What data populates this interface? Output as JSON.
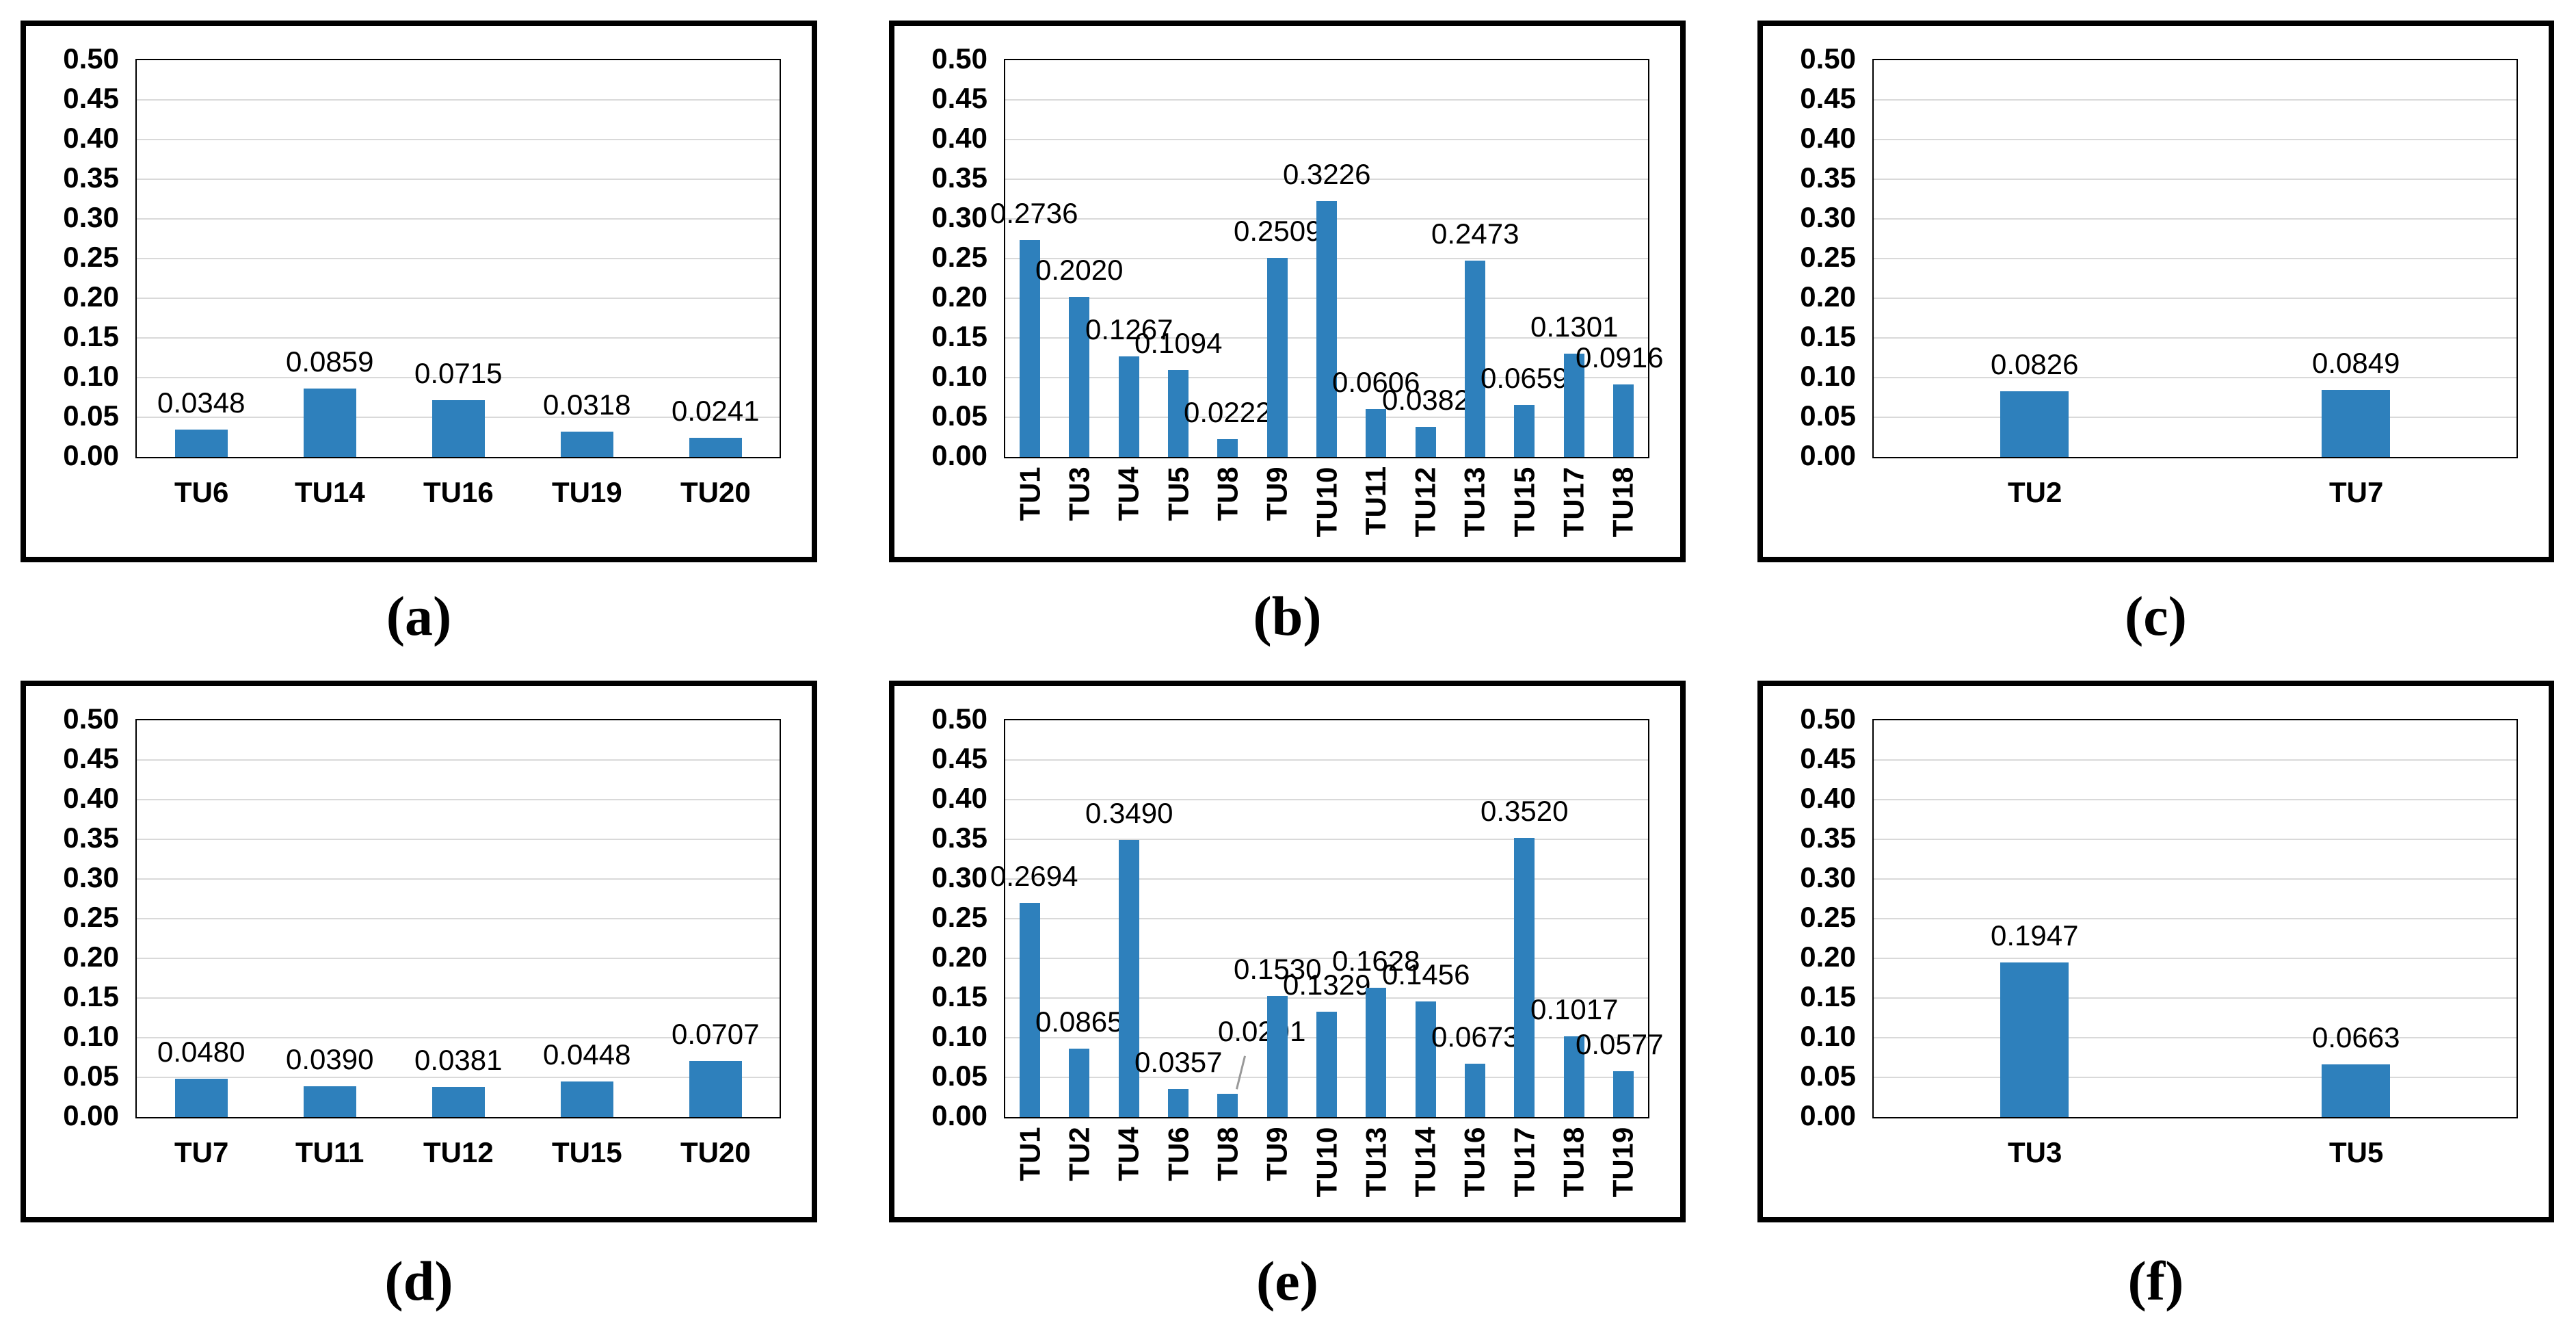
{
  "figure": {
    "description": "Six bar chart panels arranged in a 2x3 grid, labeled (a) to (f)",
    "bar_color": "#2E80BC",
    "gridline_color": "#D9D9D9",
    "plot_border_color": "#000000",
    "panel_border_color": "#000000",
    "leader_line_color": "#999999",
    "y_axis": {
      "min": 0.0,
      "max": 0.5,
      "step": 0.05,
      "tick_labels": [
        "0.50",
        "0.45",
        "0.40",
        "0.35",
        "0.30",
        "0.25",
        "0.20",
        "0.15",
        "0.10",
        "0.05",
        "0.00"
      ]
    }
  },
  "chart_data": [
    {
      "id": "a",
      "caption": "(a)",
      "type": "bar",
      "categories": [
        "TU6",
        "TU14",
        "TU16",
        "TU19",
        "TU20"
      ],
      "values": [
        0.0348,
        0.0859,
        0.0715,
        0.0318,
        0.0241
      ],
      "value_labels": [
        "0.0348",
        "0.0859",
        "0.0715",
        "0.0318",
        "0.0241"
      ],
      "x_labels_rotated": false,
      "ylim": [
        0,
        0.5
      ],
      "grid": "horizontal",
      "legend": "none"
    },
    {
      "id": "b",
      "caption": "(b)",
      "type": "bar",
      "categories": [
        "TU1",
        "TU3",
        "TU4",
        "TU5",
        "TU8",
        "TU9",
        "TU10",
        "TU11",
        "TU12",
        "TU13",
        "TU15",
        "TU17",
        "TU18"
      ],
      "values": [
        0.2736,
        0.202,
        0.1267,
        0.1094,
        0.0222,
        0.2509,
        0.3226,
        0.0606,
        0.0382,
        0.2473,
        0.0659,
        0.1301,
        0.0916
      ],
      "value_labels": [
        "0.2736",
        "0.2020",
        "0.1267",
        "0.1094",
        "0.0222",
        "0.2509",
        "0.3226",
        "0.0606",
        "0.0382",
        "0.2473",
        "0.0659",
        "0.1301",
        "0.0916"
      ],
      "x_labels_rotated": true,
      "ylim": [
        0,
        0.5
      ],
      "grid": "horizontal",
      "legend": "none"
    },
    {
      "id": "c",
      "caption": "(c)",
      "type": "bar",
      "categories": [
        "TU2",
        "TU7"
      ],
      "values": [
        0.0826,
        0.0849
      ],
      "value_labels": [
        "0.0826",
        "0.0849"
      ],
      "x_labels_rotated": false,
      "ylim": [
        0,
        0.5
      ],
      "grid": "horizontal",
      "legend": "none"
    },
    {
      "id": "d",
      "caption": "(d)",
      "type": "bar",
      "categories": [
        "TU7",
        "TU11",
        "TU12",
        "TU15",
        "TU20"
      ],
      "values": [
        0.048,
        0.039,
        0.0381,
        0.0448,
        0.0707
      ],
      "value_labels": [
        "0.0480",
        "0.0390",
        "0.0381",
        "0.0448",
        "0.0707"
      ],
      "x_labels_rotated": false,
      "ylim": [
        0,
        0.5
      ],
      "grid": "horizontal",
      "legend": "none"
    },
    {
      "id": "e",
      "caption": "(e)",
      "type": "bar",
      "categories": [
        "TU1",
        "TU2",
        "TU4",
        "TU6",
        "TU8",
        "TU9",
        "TU10",
        "TU13",
        "TU14",
        "TU16",
        "TU17",
        "TU18",
        "TU19"
      ],
      "values": [
        0.2694,
        0.0865,
        0.349,
        0.0357,
        0.0291,
        0.153,
        0.1329,
        0.1628,
        0.1456,
        0.0673,
        0.352,
        0.1017,
        0.0577
      ],
      "value_labels": [
        "0.2694",
        "0.0865",
        "0.3490",
        "0.0357",
        "0.0291",
        "0.1530",
        "0.1329",
        "0.1628",
        "0.1456",
        "0.0673",
        "0.3520",
        "0.1017",
        "0.0577"
      ],
      "x_labels_rotated": true,
      "ylim": [
        0,
        0.5
      ],
      "grid": "horizontal",
      "legend": "none",
      "annotations": {
        "raised_value_labels": [
          "TU8"
        ]
      }
    },
    {
      "id": "f",
      "caption": "(f)",
      "type": "bar",
      "categories": [
        "TU3",
        "TU5"
      ],
      "values": [
        0.1947,
        0.0663
      ],
      "value_labels": [
        "0.1947",
        "0.0663"
      ],
      "x_labels_rotated": false,
      "ylim": [
        0,
        0.5
      ],
      "grid": "horizontal",
      "legend": "none"
    }
  ]
}
